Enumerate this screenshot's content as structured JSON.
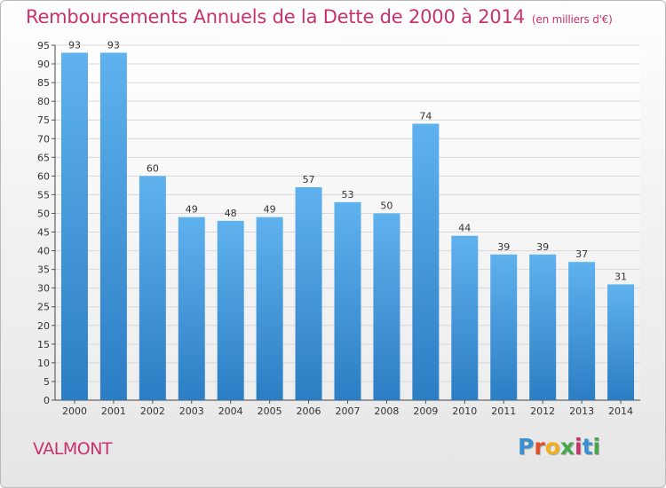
{
  "header": {
    "title": "Remboursements Annuels de la Dette de 2000 à 2014",
    "subtitle": "(en milliers d'€)"
  },
  "footer": {
    "commune": "VALMONT",
    "logo_text": "Proxiti"
  },
  "colors": {
    "title": "#c8326e",
    "bar_top": "#5fb2ee",
    "bar_bottom": "#2c7ec4",
    "logo": [
      "#3a8fd0",
      "#e0502a",
      "#f0b020",
      "#4aa64a",
      "#c8326e",
      "#3a8fd0",
      "#4aa64a"
    ]
  },
  "chart_data": {
    "type": "bar",
    "title": "Remboursements Annuels de la Dette de 2000 à 2014",
    "subtitle": "(en milliers d'€)",
    "categories": [
      "2000",
      "2001",
      "2002",
      "2003",
      "2004",
      "2005",
      "2006",
      "2007",
      "2008",
      "2009",
      "2010",
      "2011",
      "2012",
      "2013",
      "2014"
    ],
    "values": [
      93,
      93,
      60,
      49,
      48,
      49,
      57,
      53,
      50,
      74,
      44,
      39,
      39,
      37,
      31
    ],
    "ylim": [
      0,
      95
    ],
    "yticks": [
      0,
      5,
      10,
      15,
      20,
      25,
      30,
      35,
      40,
      45,
      50,
      55,
      60,
      65,
      70,
      75,
      80,
      85,
      90,
      95
    ],
    "grid": true,
    "data_labels": true
  }
}
